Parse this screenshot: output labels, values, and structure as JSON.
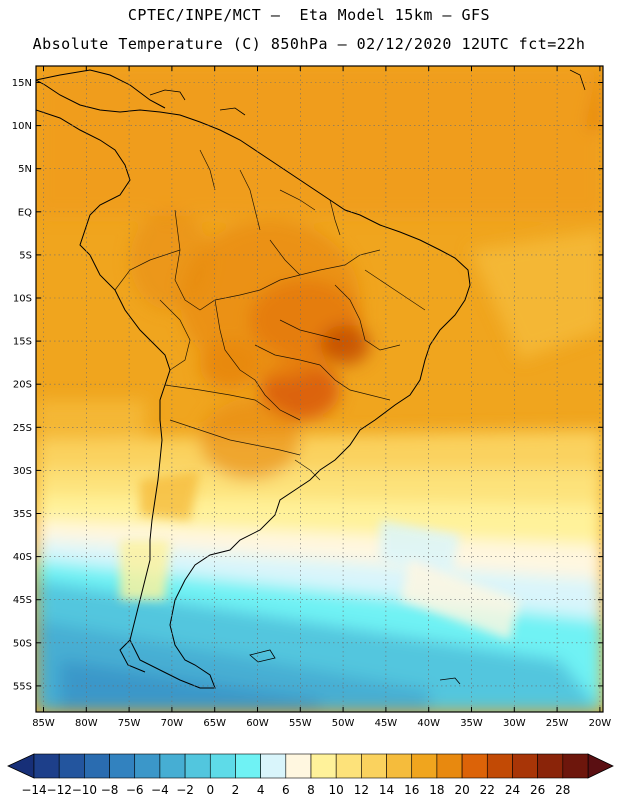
{
  "header": {
    "line1": "CPTEC/INPE/MCT –  Eta Model 15km – GFS",
    "line2": "Absolute Temperature (C) 850hPa – 02/12/2020 12UTC fct=22h"
  },
  "map": {
    "lat_labels": [
      "15N",
      "10N",
      "5N",
      "EQ",
      "5S",
      "10S",
      "15S",
      "20S",
      "25S",
      "30S",
      "35S",
      "40S",
      "45S",
      "50S",
      "55S"
    ],
    "lon_labels": [
      "85W",
      "80W",
      "75W",
      "70W",
      "65W",
      "60W",
      "55W",
      "50W",
      "45W",
      "40W",
      "35W",
      "30W",
      "25W",
      "20W"
    ]
  },
  "colorbar": {
    "labels": [
      "-14",
      "-12",
      "-10",
      "-8",
      "-6",
      "-4",
      "-2",
      "0",
      "2",
      "4",
      "6",
      "8",
      "10",
      "12",
      "14",
      "16",
      "18",
      "20",
      "22",
      "24",
      "26",
      "28"
    ],
    "colors": [
      "#1d3f8a",
      "#23559e",
      "#2a6cb0",
      "#3282bf",
      "#3b97c9",
      "#46aed3",
      "#52c6de",
      "#5edbe8",
      "#6ff2f4",
      "#d9f5fb",
      "#fff7e0",
      "#fff29a",
      "#fde27a",
      "#fad25e",
      "#f5bc3c",
      "#f0a51e",
      "#e8890f",
      "#dc6308",
      "#c24a05",
      "#a83507",
      "#8a2409",
      "#6d160c"
    ],
    "under_color": "#172f78",
    "over_color": "#5a0f12"
  }
}
